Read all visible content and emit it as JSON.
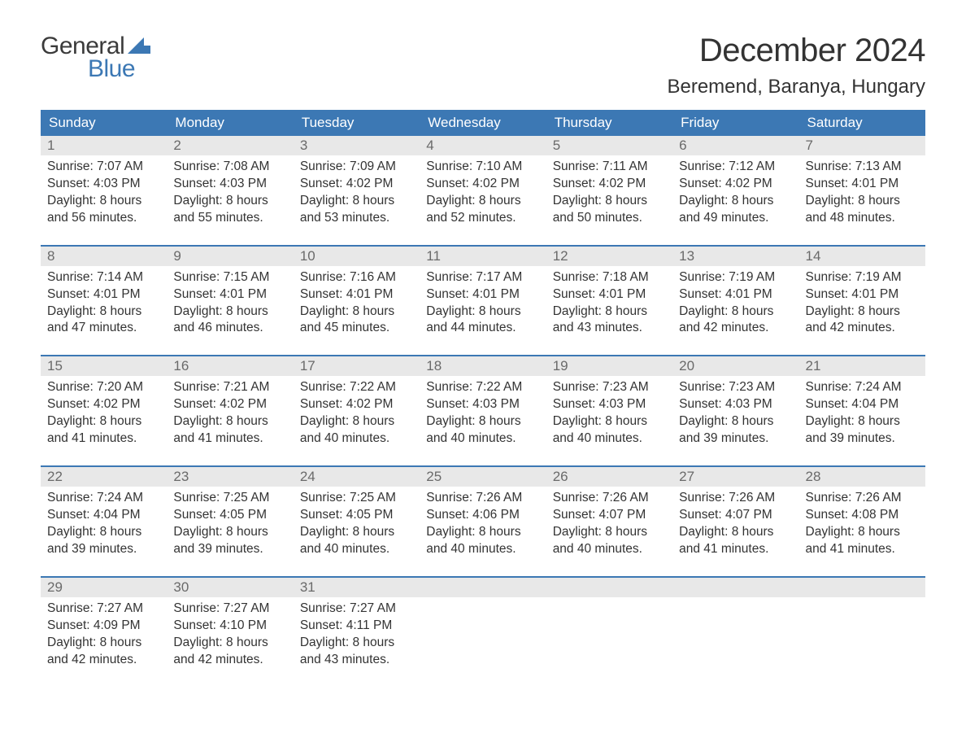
{
  "logo": {
    "word1": "General",
    "word2": "Blue",
    "flag_color": "#3c78b4"
  },
  "header": {
    "month_title": "December 2024",
    "location": "Beremend, Baranya, Hungary"
  },
  "calendar": {
    "type": "table",
    "background_color": "#ffffff",
    "header_bg": "#3c78b4",
    "header_text_color": "#ffffff",
    "daynum_bg": "#e8e8e8",
    "daynum_color": "#6a6a6a",
    "body_text_color": "#333333",
    "week_border_color": "#3c78b4",
    "day_headers": [
      "Sunday",
      "Monday",
      "Tuesday",
      "Wednesday",
      "Thursday",
      "Friday",
      "Saturday"
    ],
    "weeks": [
      [
        {
          "n": 1,
          "sr": "7:07 AM",
          "ss": "4:03 PM",
          "dl1": "Daylight: 8 hours",
          "dl2": "and 56 minutes."
        },
        {
          "n": 2,
          "sr": "7:08 AM",
          "ss": "4:03 PM",
          "dl1": "Daylight: 8 hours",
          "dl2": "and 55 minutes."
        },
        {
          "n": 3,
          "sr": "7:09 AM",
          "ss": "4:02 PM",
          "dl1": "Daylight: 8 hours",
          "dl2": "and 53 minutes."
        },
        {
          "n": 4,
          "sr": "7:10 AM",
          "ss": "4:02 PM",
          "dl1": "Daylight: 8 hours",
          "dl2": "and 52 minutes."
        },
        {
          "n": 5,
          "sr": "7:11 AM",
          "ss": "4:02 PM",
          "dl1": "Daylight: 8 hours",
          "dl2": "and 50 minutes."
        },
        {
          "n": 6,
          "sr": "7:12 AM",
          "ss": "4:02 PM",
          "dl1": "Daylight: 8 hours",
          "dl2": "and 49 minutes."
        },
        {
          "n": 7,
          "sr": "7:13 AM",
          "ss": "4:01 PM",
          "dl1": "Daylight: 8 hours",
          "dl2": "and 48 minutes."
        }
      ],
      [
        {
          "n": 8,
          "sr": "7:14 AM",
          "ss": "4:01 PM",
          "dl1": "Daylight: 8 hours",
          "dl2": "and 47 minutes."
        },
        {
          "n": 9,
          "sr": "7:15 AM",
          "ss": "4:01 PM",
          "dl1": "Daylight: 8 hours",
          "dl2": "and 46 minutes."
        },
        {
          "n": 10,
          "sr": "7:16 AM",
          "ss": "4:01 PM",
          "dl1": "Daylight: 8 hours",
          "dl2": "and 45 minutes."
        },
        {
          "n": 11,
          "sr": "7:17 AM",
          "ss": "4:01 PM",
          "dl1": "Daylight: 8 hours",
          "dl2": "and 44 minutes."
        },
        {
          "n": 12,
          "sr": "7:18 AM",
          "ss": "4:01 PM",
          "dl1": "Daylight: 8 hours",
          "dl2": "and 43 minutes."
        },
        {
          "n": 13,
          "sr": "7:19 AM",
          "ss": "4:01 PM",
          "dl1": "Daylight: 8 hours",
          "dl2": "and 42 minutes."
        },
        {
          "n": 14,
          "sr": "7:19 AM",
          "ss": "4:01 PM",
          "dl1": "Daylight: 8 hours",
          "dl2": "and 42 minutes."
        }
      ],
      [
        {
          "n": 15,
          "sr": "7:20 AM",
          "ss": "4:02 PM",
          "dl1": "Daylight: 8 hours",
          "dl2": "and 41 minutes."
        },
        {
          "n": 16,
          "sr": "7:21 AM",
          "ss": "4:02 PM",
          "dl1": "Daylight: 8 hours",
          "dl2": "and 41 minutes."
        },
        {
          "n": 17,
          "sr": "7:22 AM",
          "ss": "4:02 PM",
          "dl1": "Daylight: 8 hours",
          "dl2": "and 40 minutes."
        },
        {
          "n": 18,
          "sr": "7:22 AM",
          "ss": "4:03 PM",
          "dl1": "Daylight: 8 hours",
          "dl2": "and 40 minutes."
        },
        {
          "n": 19,
          "sr": "7:23 AM",
          "ss": "4:03 PM",
          "dl1": "Daylight: 8 hours",
          "dl2": "and 40 minutes."
        },
        {
          "n": 20,
          "sr": "7:23 AM",
          "ss": "4:03 PM",
          "dl1": "Daylight: 8 hours",
          "dl2": "and 39 minutes."
        },
        {
          "n": 21,
          "sr": "7:24 AM",
          "ss": "4:04 PM",
          "dl1": "Daylight: 8 hours",
          "dl2": "and 39 minutes."
        }
      ],
      [
        {
          "n": 22,
          "sr": "7:24 AM",
          "ss": "4:04 PM",
          "dl1": "Daylight: 8 hours",
          "dl2": "and 39 minutes."
        },
        {
          "n": 23,
          "sr": "7:25 AM",
          "ss": "4:05 PM",
          "dl1": "Daylight: 8 hours",
          "dl2": "and 39 minutes."
        },
        {
          "n": 24,
          "sr": "7:25 AM",
          "ss": "4:05 PM",
          "dl1": "Daylight: 8 hours",
          "dl2": "and 40 minutes."
        },
        {
          "n": 25,
          "sr": "7:26 AM",
          "ss": "4:06 PM",
          "dl1": "Daylight: 8 hours",
          "dl2": "and 40 minutes."
        },
        {
          "n": 26,
          "sr": "7:26 AM",
          "ss": "4:07 PM",
          "dl1": "Daylight: 8 hours",
          "dl2": "and 40 minutes."
        },
        {
          "n": 27,
          "sr": "7:26 AM",
          "ss": "4:07 PM",
          "dl1": "Daylight: 8 hours",
          "dl2": "and 41 minutes."
        },
        {
          "n": 28,
          "sr": "7:26 AM",
          "ss": "4:08 PM",
          "dl1": "Daylight: 8 hours",
          "dl2": "and 41 minutes."
        }
      ],
      [
        {
          "n": 29,
          "sr": "7:27 AM",
          "ss": "4:09 PM",
          "dl1": "Daylight: 8 hours",
          "dl2": "and 42 minutes."
        },
        {
          "n": 30,
          "sr": "7:27 AM",
          "ss": "4:10 PM",
          "dl1": "Daylight: 8 hours",
          "dl2": "and 42 minutes."
        },
        {
          "n": 31,
          "sr": "7:27 AM",
          "ss": "4:11 PM",
          "dl1": "Daylight: 8 hours",
          "dl2": "and 43 minutes."
        },
        {
          "empty": true
        },
        {
          "empty": true
        },
        {
          "empty": true
        },
        {
          "empty": true
        }
      ]
    ],
    "labels": {
      "sunrise_prefix": "Sunrise: ",
      "sunset_prefix": "Sunset: "
    }
  }
}
